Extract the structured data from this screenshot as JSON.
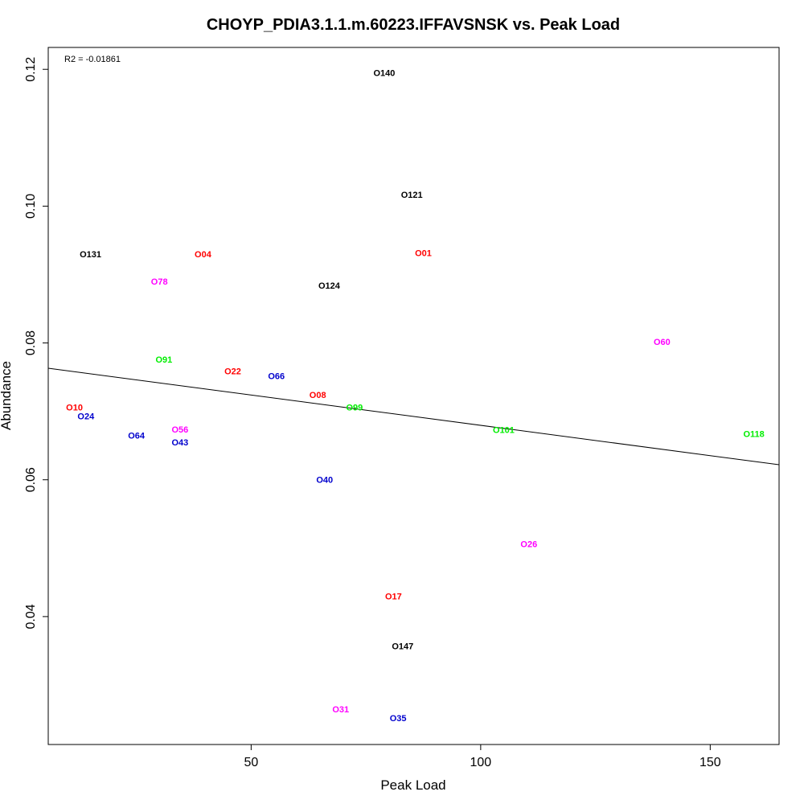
{
  "chart_data": {
    "type": "scatter",
    "title": "CHOYP_PDIA3.1.1.m.60223.IFFAVSNSK vs. Peak Load",
    "xlabel": "Peak Load",
    "ylabel": "Abundance",
    "xlim": [
      5.8,
      165
    ],
    "ylim": [
      0.0213,
      0.1232
    ],
    "x_ticks": [
      50,
      100,
      150
    ],
    "x_tick_labels": [
      "50",
      "100",
      "150"
    ],
    "y_ticks": [
      0.04,
      0.06,
      0.08,
      0.1,
      0.12
    ],
    "y_tick_labels": [
      "0.04",
      "0.06",
      "0.08",
      "0.10",
      "0.12"
    ],
    "grid": false,
    "annotation": "R2 = -0.01861",
    "regression_line": {
      "y_at_xmin": 0.0763,
      "y_at_xmax": 0.0622
    },
    "colors": {
      "black": "#000000",
      "red": "#ff0000",
      "magenta": "#ff00ff",
      "green": "#00ee00",
      "blue": "#0000cd"
    },
    "points": [
      {
        "label": "O140",
        "x": 79.0,
        "y": 0.1195,
        "color": "black"
      },
      {
        "label": "O121",
        "x": 85.0,
        "y": 0.1017,
        "color": "black"
      },
      {
        "label": "O131",
        "x": 15.0,
        "y": 0.093,
        "color": "black"
      },
      {
        "label": "O04",
        "x": 39.5,
        "y": 0.093,
        "color": "red"
      },
      {
        "label": "O01",
        "x": 87.5,
        "y": 0.0932,
        "color": "red"
      },
      {
        "label": "O78",
        "x": 30.0,
        "y": 0.089,
        "color": "magenta"
      },
      {
        "label": "O124",
        "x": 67.0,
        "y": 0.0884,
        "color": "black"
      },
      {
        "label": "O60",
        "x": 139.5,
        "y": 0.0802,
        "color": "magenta"
      },
      {
        "label": "O91",
        "x": 31.0,
        "y": 0.0776,
        "color": "green"
      },
      {
        "label": "O22",
        "x": 46.0,
        "y": 0.0759,
        "color": "red"
      },
      {
        "label": "O66",
        "x": 55.5,
        "y": 0.0752,
        "color": "blue"
      },
      {
        "label": "O08",
        "x": 64.5,
        "y": 0.0724,
        "color": "red"
      },
      {
        "label": "O99",
        "x": 72.5,
        "y": 0.0706,
        "color": "green"
      },
      {
        "label": "O10",
        "x": 11.5,
        "y": 0.0706,
        "color": "red"
      },
      {
        "label": "O24",
        "x": 14.0,
        "y": 0.0693,
        "color": "blue"
      },
      {
        "label": "O56",
        "x": 34.5,
        "y": 0.0674,
        "color": "magenta"
      },
      {
        "label": "O101",
        "x": 105.0,
        "y": 0.0673,
        "color": "green"
      },
      {
        "label": "O118",
        "x": 159.5,
        "y": 0.0667,
        "color": "green"
      },
      {
        "label": "O64",
        "x": 25.0,
        "y": 0.0665,
        "color": "blue"
      },
      {
        "label": "O43",
        "x": 34.5,
        "y": 0.0655,
        "color": "blue"
      },
      {
        "label": "O40",
        "x": 66.0,
        "y": 0.06,
        "color": "blue"
      },
      {
        "label": "O26",
        "x": 110.5,
        "y": 0.0506,
        "color": "magenta"
      },
      {
        "label": "O17",
        "x": 81.0,
        "y": 0.043,
        "color": "red"
      },
      {
        "label": "O147",
        "x": 83.0,
        "y": 0.0357,
        "color": "black"
      },
      {
        "label": "O31",
        "x": 69.5,
        "y": 0.0265,
        "color": "magenta"
      },
      {
        "label": "O35",
        "x": 82.0,
        "y": 0.0252,
        "color": "blue"
      }
    ]
  }
}
